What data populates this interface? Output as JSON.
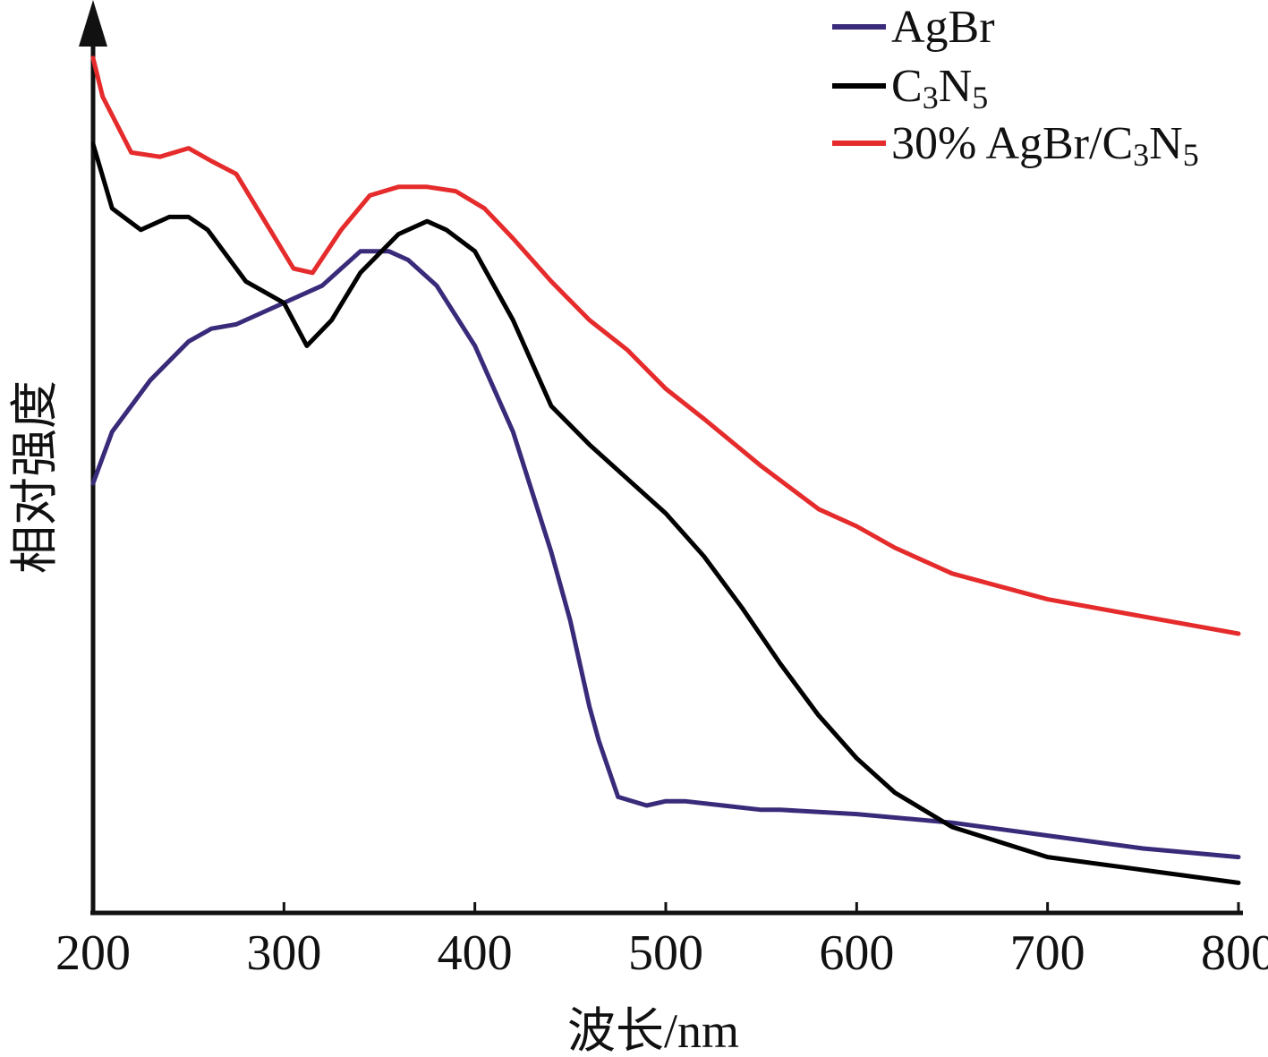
{
  "chart_data": {
    "type": "line",
    "title": "",
    "xlabel": "波长/nm",
    "ylabel": "相对强度",
    "xlim": [
      200,
      800
    ],
    "ylim": [
      0,
      1
    ],
    "y_ticks_shown": false,
    "grid": false,
    "legend_position": "top-right",
    "x_ticks": [
      200,
      300,
      400,
      500,
      600,
      700,
      800
    ],
    "series": [
      {
        "name": "AgBr",
        "label_main": "AgBr",
        "label_subs": [],
        "color": "#3a2a7a",
        "x": [
          200,
          210,
          230,
          250,
          262,
          275,
          300,
          320,
          340,
          355,
          365,
          380,
          400,
          420,
          440,
          450,
          460,
          465,
          475,
          490,
          500,
          510,
          530,
          550,
          560,
          600,
          650,
          700,
          750,
          800
        ],
        "y": [
          0.5,
          0.56,
          0.62,
          0.665,
          0.68,
          0.685,
          0.71,
          0.73,
          0.77,
          0.77,
          0.76,
          0.73,
          0.66,
          0.56,
          0.42,
          0.34,
          0.24,
          0.2,
          0.135,
          0.125,
          0.13,
          0.13,
          0.125,
          0.12,
          0.12,
          0.115,
          0.105,
          0.09,
          0.075,
          0.065
        ]
      },
      {
        "name": "C3N5",
        "label_main": "C",
        "label_subs": [
          [
            "3",
            "N"
          ],
          [
            "5",
            ""
          ]
        ],
        "color": "#000000",
        "x": [
          200,
          210,
          225,
          240,
          250,
          260,
          280,
          300,
          312,
          325,
          340,
          360,
          375,
          385,
          400,
          420,
          440,
          460,
          480,
          500,
          520,
          540,
          560,
          580,
          600,
          620,
          650,
          700,
          750,
          800
        ],
        "y": [
          0.895,
          0.82,
          0.795,
          0.81,
          0.81,
          0.795,
          0.735,
          0.71,
          0.66,
          0.69,
          0.745,
          0.79,
          0.805,
          0.795,
          0.77,
          0.69,
          0.59,
          0.545,
          0.505,
          0.465,
          0.415,
          0.355,
          0.29,
          0.23,
          0.18,
          0.14,
          0.1,
          0.065,
          0.05,
          0.035
        ]
      },
      {
        "name": "30% AgBr/C3N5",
        "label_main": "30% AgBr/C",
        "label_subs": [
          [
            "3",
            "N"
          ],
          [
            "5",
            ""
          ]
        ],
        "color": "#e52b2b",
        "x": [
          200,
          205,
          220,
          235,
          250,
          262,
          275,
          290,
          305,
          315,
          330,
          345,
          360,
          375,
          390,
          405,
          420,
          440,
          460,
          480,
          500,
          520,
          550,
          580,
          600,
          620,
          650,
          700,
          750,
          800
        ],
        "y": [
          0.995,
          0.95,
          0.885,
          0.88,
          0.89,
          0.875,
          0.86,
          0.805,
          0.75,
          0.745,
          0.795,
          0.835,
          0.845,
          0.845,
          0.84,
          0.82,
          0.785,
          0.735,
          0.69,
          0.655,
          0.61,
          0.575,
          0.52,
          0.47,
          0.45,
          0.425,
          0.395,
          0.365,
          0.345,
          0.325
        ]
      }
    ]
  }
}
